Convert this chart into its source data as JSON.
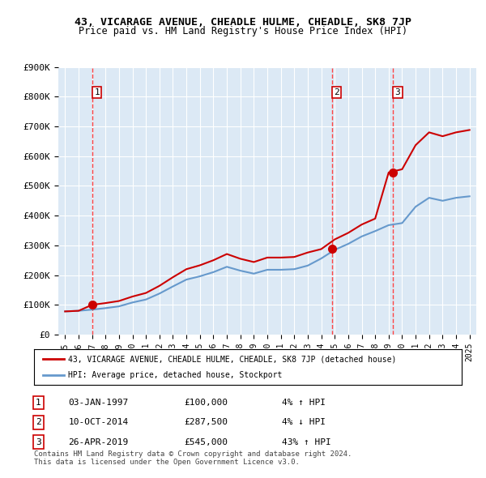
{
  "title": "43, VICARAGE AVENUE, CHEADLE HULME, CHEADLE, SK8 7JP",
  "subtitle": "Price paid vs. HM Land Registry's House Price Index (HPI)",
  "ylabel": "",
  "background_color": "#dce9f5",
  "plot_bg_color": "#dce9f5",
  "fig_bg_color": "#ffffff",
  "ylim": [
    0,
    900000
  ],
  "xlim_start": 1994.5,
  "xlim_end": 2025.5,
  "yticks": [
    0,
    100000,
    200000,
    300000,
    400000,
    500000,
    600000,
    700000,
    800000,
    900000
  ],
  "ytick_labels": [
    "£0",
    "£100K",
    "£200K",
    "£300K",
    "£400K",
    "£500K",
    "£600K",
    "£700K",
    "£800K",
    "£900K"
  ],
  "sales": [
    {
      "date_year": 1997.01,
      "price": 100000,
      "label": "1"
    },
    {
      "date_year": 2014.78,
      "price": 287500,
      "label": "2"
    },
    {
      "date_year": 2019.32,
      "price": 545000,
      "label": "3"
    }
  ],
  "sale_vline_color": "#ff4444",
  "sale_dot_color": "#cc0000",
  "hpi_line_color": "#6699cc",
  "price_line_color": "#cc0000",
  "legend1_label": "43, VICARAGE AVENUE, CHEADLE HULME, CHEADLE, SK8 7JP (detached house)",
  "legend2_label": "HPI: Average price, detached house, Stockport",
  "table_rows": [
    {
      "num": "1",
      "date": "03-JAN-1997",
      "price": "£100,000",
      "hpi": "4% ↑ HPI"
    },
    {
      "num": "2",
      "date": "10-OCT-2014",
      "price": "£287,500",
      "hpi": "4% ↓ HPI"
    },
    {
      "num": "3",
      "date": "26-APR-2019",
      "price": "£545,000",
      "hpi": "43% ↑ HPI"
    }
  ],
  "footer": "Contains HM Land Registry data © Crown copyright and database right 2024.\nThis data is licensed under the Open Government Licence v3.0.",
  "hpi_data_years": [
    1995,
    1996,
    1997,
    1998,
    1999,
    2000,
    2001,
    2002,
    2003,
    2004,
    2005,
    2006,
    2007,
    2008,
    2009,
    2010,
    2011,
    2012,
    2013,
    2014,
    2015,
    2016,
    2017,
    2018,
    2019,
    2020,
    2021,
    2022,
    2023,
    2024,
    2025
  ],
  "hpi_data_values": [
    78000,
    80000,
    84000,
    89000,
    95000,
    108000,
    118000,
    138000,
    162000,
    185000,
    196000,
    210000,
    228000,
    215000,
    205000,
    218000,
    218000,
    220000,
    232000,
    256000,
    285000,
    305000,
    330000,
    348000,
    368000,
    375000,
    430000,
    460000,
    450000,
    460000,
    465000
  ],
  "price_indexed_years": [
    1995,
    1996,
    1997,
    1998,
    1999,
    2000,
    2001,
    2002,
    2003,
    2004,
    2005,
    2006,
    2007,
    2008,
    2009,
    2010,
    2011,
    2012,
    2013,
    2014,
    2015,
    2016,
    2017,
    2018,
    2019,
    2020,
    2021,
    2022,
    2023,
    2024,
    2025
  ],
  "price_indexed_values": [
    78000,
    80000,
    100000,
    106000,
    113000,
    128000,
    140000,
    164000,
    193000,
    220000,
    233000,
    250000,
    271000,
    255000,
    244000,
    259000,
    259000,
    261000,
    276000,
    287500,
    320000,
    342000,
    370000,
    390000,
    545000,
    556000,
    637000,
    680000,
    667000,
    680000,
    688000
  ]
}
